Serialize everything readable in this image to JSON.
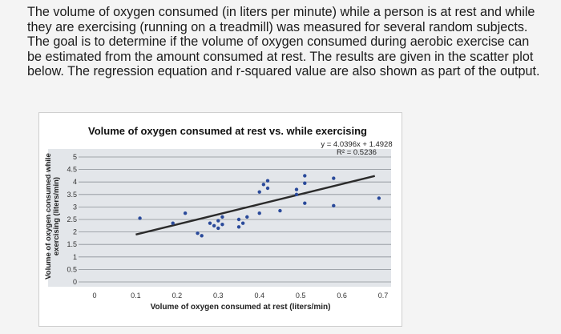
{
  "question_text": "The volume of oxygen consumed (in liters per minute) while a person is at rest and while they are exercising (running on a treadmill) was measured for several random subjects. The goal is to determine if the volume of oxygen consumed during aerobic exercise can be estimated from the amount consumed at rest. The results are given in the scatter plot below. The regression equation and r-squared value are also shown as part of the output.",
  "chart_data": {
    "type": "scatter",
    "title": "Volume of oxygen consumed at rest vs. while exercising",
    "xlabel": "Volume of oxygen consumed at rest (liters/min)",
    "ylabel_line1": "Volume of oxygen consumed while",
    "ylabel_line2": "exercising (liters/min)",
    "equation": "y = 4.0396x + 1.4928",
    "r_squared": "R² = 0.5236",
    "xlim": [
      0,
      0.7
    ],
    "ylim": [
      0,
      5
    ],
    "x_ticks": [
      "0",
      "0.1",
      "0.2",
      "0.3",
      "0.4",
      "0.5",
      "0.6",
      "0.7"
    ],
    "y_ticks": [
      "0",
      "0.5",
      "1",
      "1.5",
      "2",
      "2.5",
      "3",
      "3.5",
      "4",
      "4.5",
      "5"
    ],
    "gridlines": true,
    "trendline": {
      "slope": 4.0396,
      "intercept": 1.4928,
      "x_start": 0.1,
      "x_end": 0.68
    },
    "point_color": "#2a4a9a",
    "points": [
      {
        "x": 0.11,
        "y": 2.55
      },
      {
        "x": 0.19,
        "y": 2.35
      },
      {
        "x": 0.22,
        "y": 2.75
      },
      {
        "x": 0.25,
        "y": 1.95
      },
      {
        "x": 0.26,
        "y": 1.85
      },
      {
        "x": 0.28,
        "y": 2.35
      },
      {
        "x": 0.29,
        "y": 2.25
      },
      {
        "x": 0.3,
        "y": 2.15
      },
      {
        "x": 0.3,
        "y": 2.45
      },
      {
        "x": 0.31,
        "y": 2.6
      },
      {
        "x": 0.31,
        "y": 2.3
      },
      {
        "x": 0.35,
        "y": 2.5
      },
      {
        "x": 0.35,
        "y": 2.2
      },
      {
        "x": 0.36,
        "y": 2.35
      },
      {
        "x": 0.37,
        "y": 2.6
      },
      {
        "x": 0.4,
        "y": 2.75
      },
      {
        "x": 0.4,
        "y": 3.6
      },
      {
        "x": 0.41,
        "y": 3.9
      },
      {
        "x": 0.42,
        "y": 3.75
      },
      {
        "x": 0.42,
        "y": 4.05
      },
      {
        "x": 0.45,
        "y": 2.85
      },
      {
        "x": 0.49,
        "y": 3.5
      },
      {
        "x": 0.49,
        "y": 3.7
      },
      {
        "x": 0.51,
        "y": 4.25
      },
      {
        "x": 0.51,
        "y": 3.95
      },
      {
        "x": 0.51,
        "y": 3.15
      },
      {
        "x": 0.58,
        "y": 4.15
      },
      {
        "x": 0.58,
        "y": 3.05
      },
      {
        "x": 0.69,
        "y": 3.35
      }
    ]
  }
}
